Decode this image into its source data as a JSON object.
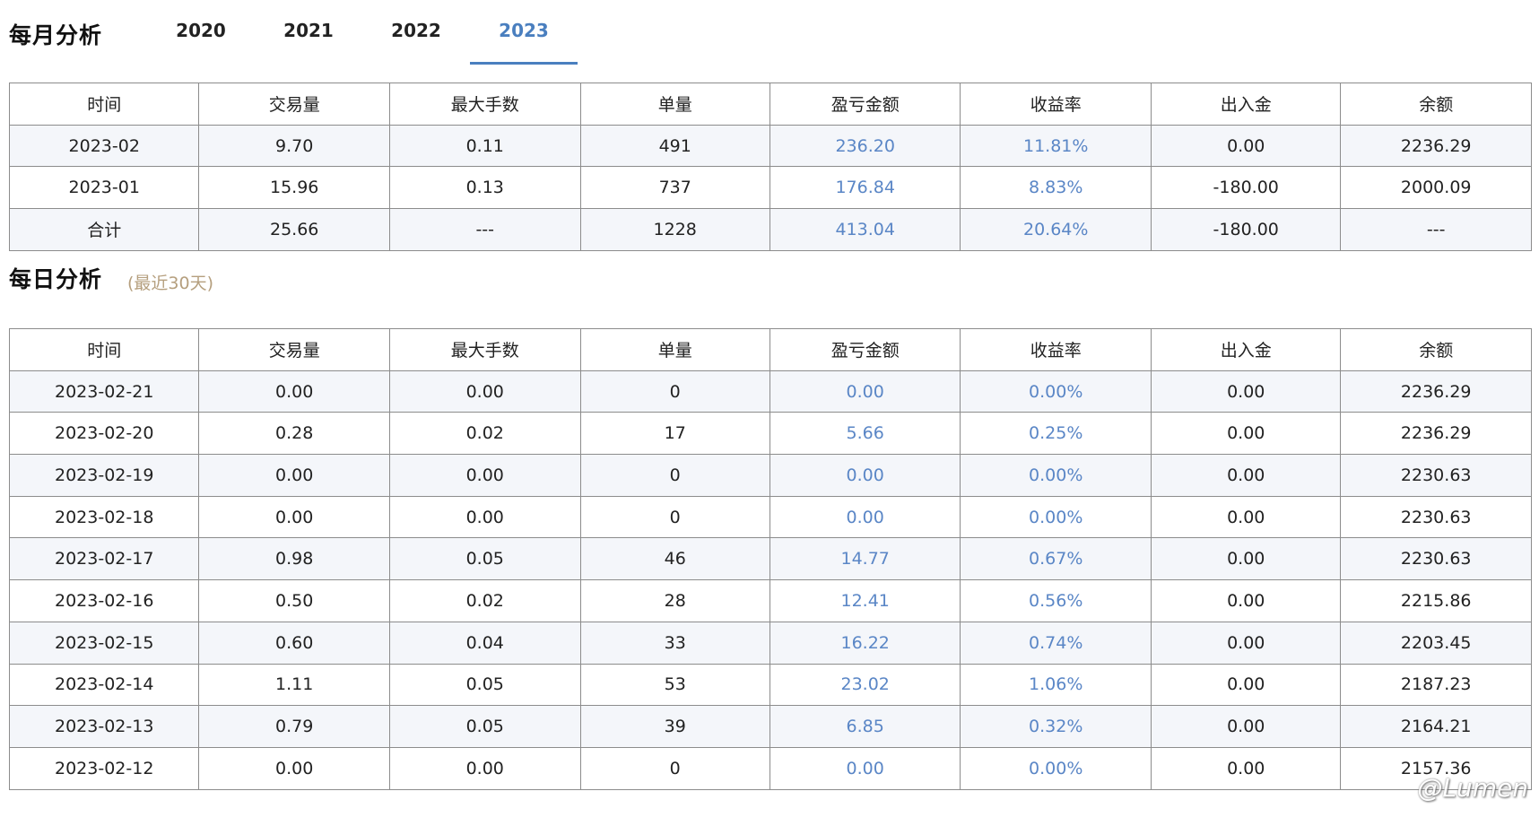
{
  "monthly": {
    "title": "每月分析",
    "years": [
      "2020",
      "2021",
      "2022",
      "2023"
    ],
    "active_year_index": 3,
    "headers": [
      "时间",
      "交易量",
      "最大手数",
      "单量",
      "盈亏金额",
      "收益率",
      "出入金",
      "余额"
    ],
    "rows": [
      [
        "2023-02",
        "9.70",
        "0.11",
        "491",
        "236.20",
        "11.81%",
        "0.00",
        "2236.29"
      ],
      [
        "2023-01",
        "15.96",
        "0.13",
        "737",
        "176.84",
        "8.83%",
        "-180.00",
        "2000.09"
      ],
      [
        "合计",
        "25.66",
        "---",
        "1228",
        "413.04",
        "20.64%",
        "-180.00",
        "---"
      ]
    ]
  },
  "daily": {
    "title": "每日分析",
    "subtitle": "(最近30天)",
    "headers": [
      "时间",
      "交易量",
      "最大手数",
      "单量",
      "盈亏金额",
      "收益率",
      "出入金",
      "余额"
    ],
    "rows": [
      [
        "2023-02-21",
        "0.00",
        "0.00",
        "0",
        "0.00",
        "0.00%",
        "0.00",
        "2236.29"
      ],
      [
        "2023-02-20",
        "0.28",
        "0.02",
        "17",
        "5.66",
        "0.25%",
        "0.00",
        "2236.29"
      ],
      [
        "2023-02-19",
        "0.00",
        "0.00",
        "0",
        "0.00",
        "0.00%",
        "0.00",
        "2230.63"
      ],
      [
        "2023-02-18",
        "0.00",
        "0.00",
        "0",
        "0.00",
        "0.00%",
        "0.00",
        "2230.63"
      ],
      [
        "2023-02-17",
        "0.98",
        "0.05",
        "46",
        "14.77",
        "0.67%",
        "0.00",
        "2230.63"
      ],
      [
        "2023-02-16",
        "0.50",
        "0.02",
        "28",
        "12.41",
        "0.56%",
        "0.00",
        "2215.86"
      ],
      [
        "2023-02-15",
        "0.60",
        "0.04",
        "33",
        "16.22",
        "0.74%",
        "0.00",
        "2203.45"
      ],
      [
        "2023-02-14",
        "1.11",
        "0.05",
        "53",
        "23.02",
        "1.06%",
        "0.00",
        "2187.23"
      ],
      [
        "2023-02-13",
        "0.79",
        "0.05",
        "39",
        "6.85",
        "0.32%",
        "0.00",
        "2164.21"
      ],
      [
        "2023-02-12",
        "0.00",
        "0.00",
        "0",
        "0.00",
        "0.00%",
        "0.00",
        "2157.36"
      ]
    ]
  },
  "watermark": "@Lumen",
  "colors": {
    "accent": "#4a7fbf",
    "value_blue": "#5a86c6",
    "subtitle": "#b59f7e",
    "row_stripe": "#f4f6fa",
    "border": "#8c8c8c"
  }
}
